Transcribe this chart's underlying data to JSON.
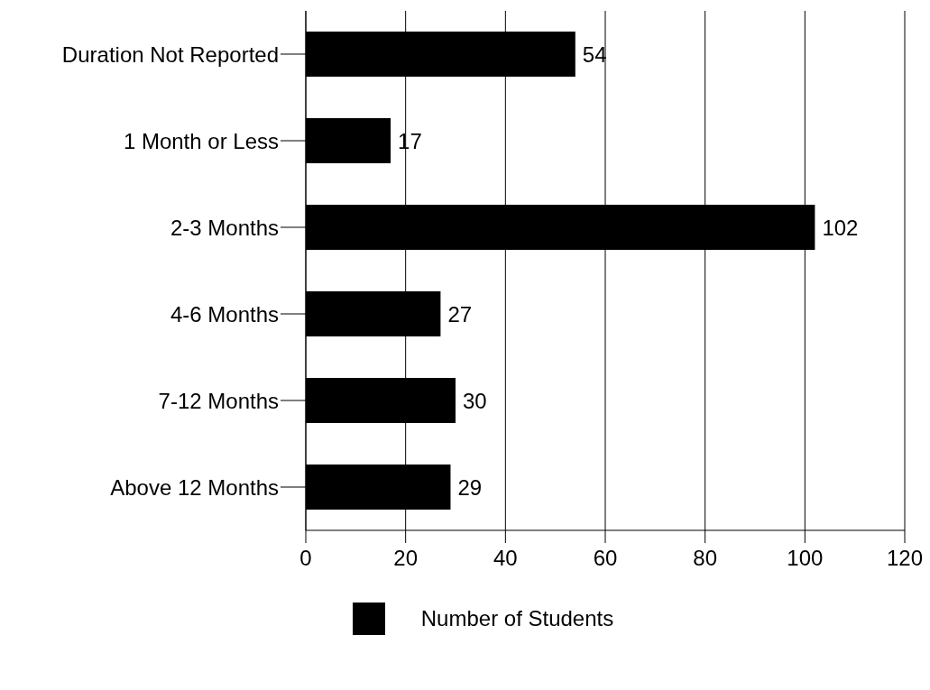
{
  "chart_data": {
    "type": "bar",
    "orientation": "horizontal",
    "categories": [
      "Duration Not Reported",
      "1 Month or Less",
      "2-3 Months",
      "4-6 Months",
      "7-12 Months",
      "Above 12 Months"
    ],
    "series": [
      {
        "name": "Number of Students",
        "color": "#000000",
        "values": [
          54,
          17,
          102,
          27,
          30,
          29
        ]
      }
    ],
    "xlim": [
      0,
      120
    ],
    "xticks": [
      0,
      20,
      40,
      60,
      80,
      100,
      120
    ],
    "grid": "x",
    "legend": "bottom",
    "data_labels": true
  }
}
